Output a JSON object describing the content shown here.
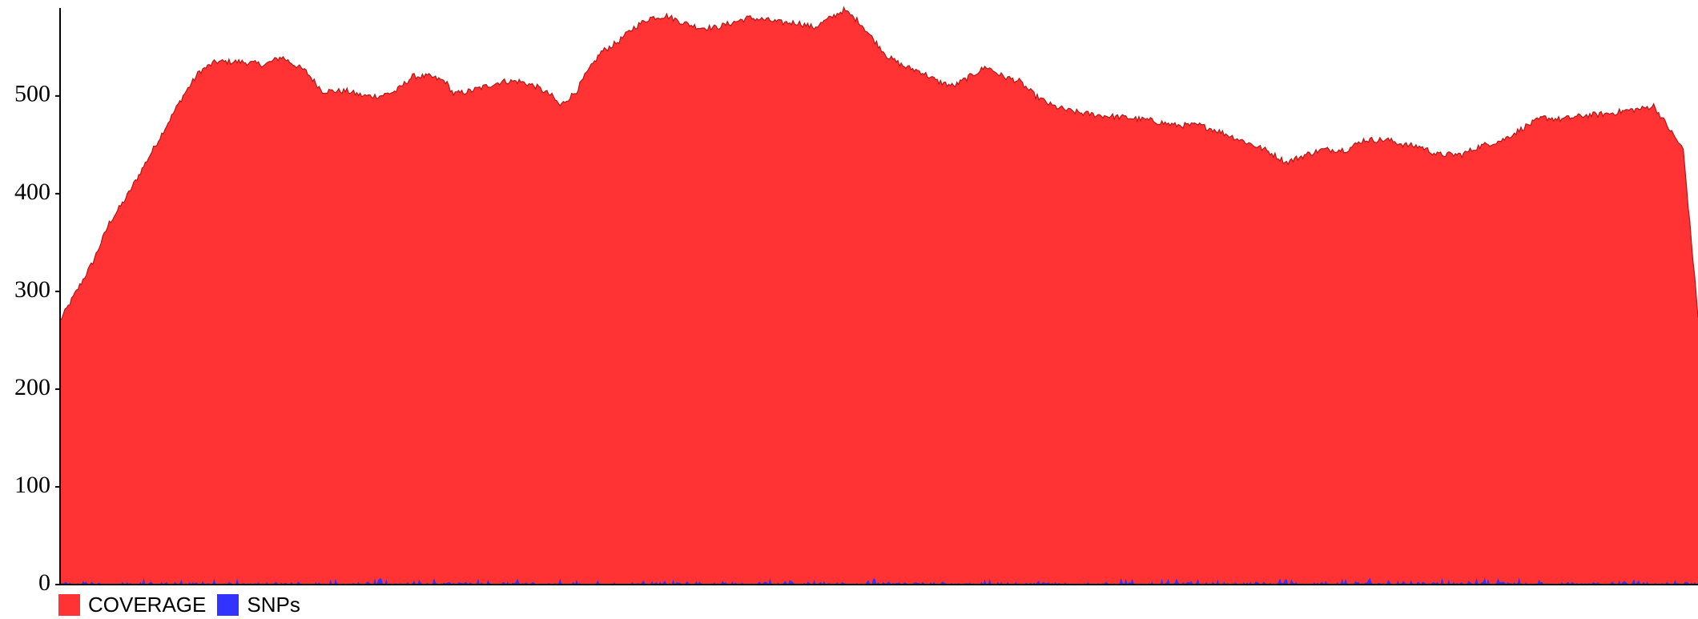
{
  "chart_data": {
    "type": "area",
    "title": "",
    "xlabel": "",
    "ylabel": "",
    "ylim": [
      0,
      590
    ],
    "x_count": 1000,
    "y_ticks": [
      0,
      100,
      200,
      300,
      400,
      500
    ],
    "y_tick_labels": [
      "0",
      "100",
      "200",
      "300",
      "400",
      "500"
    ],
    "grid": false,
    "legend_position": "bottom-left",
    "series": [
      {
        "name": "COVERAGE",
        "color": "#ff3333",
        "profile": [
          [
            0,
            270
          ],
          [
            10,
            300
          ],
          [
            20,
            330
          ],
          [
            30,
            370
          ],
          [
            40,
            395
          ],
          [
            55,
            440
          ],
          [
            65,
            470
          ],
          [
            75,
            500
          ],
          [
            85,
            525
          ],
          [
            95,
            535
          ],
          [
            110,
            535
          ],
          [
            125,
            532
          ],
          [
            135,
            540
          ],
          [
            150,
            525
          ],
          [
            160,
            505
          ],
          [
            175,
            505
          ],
          [
            185,
            500
          ],
          [
            195,
            500
          ],
          [
            205,
            505
          ],
          [
            215,
            520
          ],
          [
            225,
            520
          ],
          [
            235,
            515
          ],
          [
            240,
            502
          ],
          [
            250,
            505
          ],
          [
            260,
            510
          ],
          [
            270,
            515
          ],
          [
            280,
            515
          ],
          [
            290,
            510
          ],
          [
            300,
            500
          ],
          [
            305,
            490
          ],
          [
            315,
            505
          ],
          [
            320,
            520
          ],
          [
            330,
            545
          ],
          [
            340,
            555
          ],
          [
            350,
            570
          ],
          [
            360,
            580
          ],
          [
            370,
            582
          ],
          [
            380,
            575
          ],
          [
            390,
            570
          ],
          [
            400,
            570
          ],
          [
            410,
            575
          ],
          [
            420,
            580
          ],
          [
            430,
            578
          ],
          [
            440,
            575
          ],
          [
            450,
            575
          ],
          [
            460,
            570
          ],
          [
            470,
            580
          ],
          [
            478,
            588
          ],
          [
            488,
            575
          ],
          [
            495,
            560
          ],
          [
            505,
            540
          ],
          [
            515,
            530
          ],
          [
            525,
            525
          ],
          [
            535,
            515
          ],
          [
            545,
            510
          ],
          [
            555,
            520
          ],
          [
            565,
            530
          ],
          [
            575,
            520
          ],
          [
            585,
            515
          ],
          [
            595,
            500
          ],
          [
            605,
            490
          ],
          [
            615,
            485
          ],
          [
            625,
            482
          ],
          [
            635,
            480
          ],
          [
            650,
            478
          ],
          [
            665,
            475
          ],
          [
            680,
            470
          ],
          [
            695,
            470
          ],
          [
            705,
            465
          ],
          [
            720,
            455
          ],
          [
            735,
            445
          ],
          [
            748,
            432
          ],
          [
            760,
            440
          ],
          [
            770,
            445
          ],
          [
            785,
            445
          ],
          [
            795,
            455
          ],
          [
            810,
            455
          ],
          [
            820,
            450
          ],
          [
            830,
            448
          ],
          [
            840,
            440
          ],
          [
            855,
            440
          ],
          [
            865,
            448
          ],
          [
            880,
            455
          ],
          [
            895,
            470
          ],
          [
            905,
            478
          ],
          [
            915,
            476
          ],
          [
            930,
            480
          ],
          [
            945,
            482
          ],
          [
            955,
            485
          ],
          [
            965,
            487
          ],
          [
            972,
            490
          ],
          [
            980,
            470
          ],
          [
            990,
            445
          ],
          [
            1000,
            430
          ],
          [
            1010,
            400
          ],
          [
            1020,
            360
          ],
          [
            1030,
            330
          ],
          [
            1040,
            305
          ],
          [
            1045,
            290
          ],
          [
            1050,
            275
          ],
          [
            1000,
            275
          ]
        ]
      },
      {
        "name": "SNPs",
        "color": "#3333ff",
        "typical_max": 6
      }
    ]
  }
}
